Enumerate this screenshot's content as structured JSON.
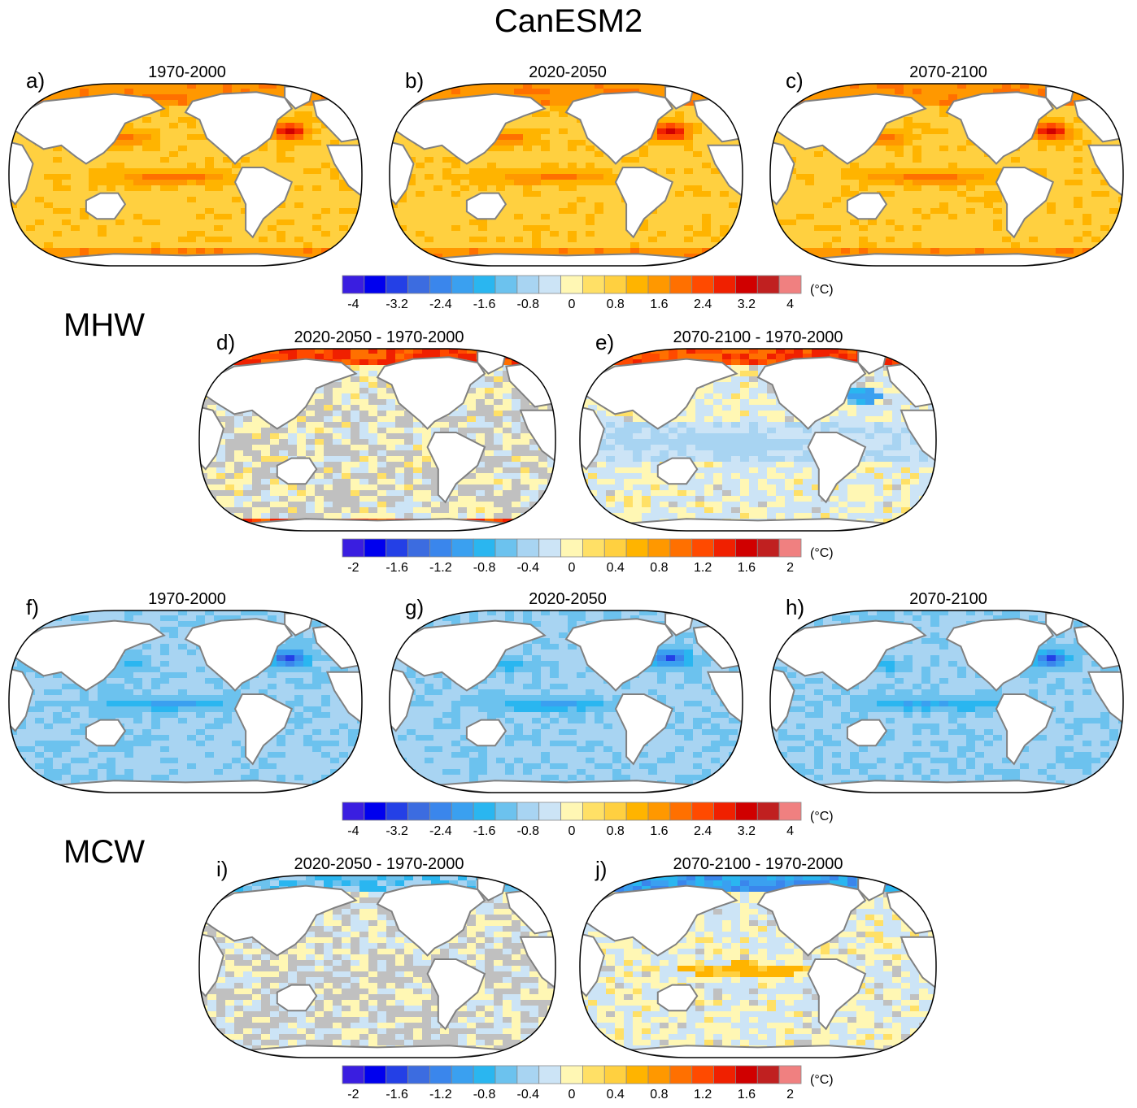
{
  "title": "CanESM2",
  "sections": [
    {
      "label": "MHW",
      "key": "mhw"
    },
    {
      "label": "MCW",
      "key": "mcw"
    }
  ],
  "panels": [
    {
      "letter": "a)",
      "title": "1970-2000",
      "kind": "warm"
    },
    {
      "letter": "b)",
      "title": "2020-2050",
      "kind": "warm"
    },
    {
      "letter": "c)",
      "title": "2070-2100",
      "kind": "warm"
    },
    {
      "letter": "d)",
      "title": "2020-2050 - 1970-2000",
      "kind": "diff-warm-small"
    },
    {
      "letter": "e)",
      "title": "2070-2100 - 1970-2000",
      "kind": "diff-warm-large"
    },
    {
      "letter": "f)",
      "title": "1970-2000",
      "kind": "cold"
    },
    {
      "letter": "g)",
      "title": "2020-2050",
      "kind": "cold"
    },
    {
      "letter": "h)",
      "title": "2070-2100",
      "kind": "cold"
    },
    {
      "letter": "i)",
      "title": "2020-2050 - 1970-2000",
      "kind": "diff-cold-small"
    },
    {
      "letter": "j)",
      "title": "2070-2100 - 1970-2000",
      "kind": "diff-cold-large"
    }
  ],
  "colorbars": [
    {
      "ticks": [
        "-4",
        "-3.2",
        "-2.4",
        "-1.6",
        "-0.8",
        "0",
        "0.8",
        "1.6",
        "2.4",
        "3.2",
        "4"
      ],
      "unit": "(°C)"
    },
    {
      "ticks": [
        "-2",
        "-1.6",
        "-1.2",
        "-0.8",
        "-0.4",
        "0",
        "0.4",
        "0.8",
        "1.2",
        "1.6",
        "2"
      ],
      "unit": "(°C)"
    },
    {
      "ticks": [
        "-4",
        "-3.2",
        "-2.4",
        "-1.6",
        "-0.8",
        "0",
        "0.8",
        "1.6",
        "2.4",
        "3.2",
        "4"
      ],
      "unit": "(°C)"
    },
    {
      "ticks": [
        "-2",
        "-1.6",
        "-1.2",
        "-0.8",
        "-0.4",
        "0",
        "0.4",
        "0.8",
        "1.2",
        "1.6",
        "2"
      ],
      "unit": "(°C)"
    }
  ],
  "palette": [
    "#3a1ee0",
    "#0000ee",
    "#2440e6",
    "#3c6ce0",
    "#3a86ec",
    "#3aa0f0",
    "#2ab6f0",
    "#6cc2ee",
    "#a8d4f2",
    "#cce4f6",
    "#fff7b4",
    "#ffe066",
    "#ffd040",
    "#ffb400",
    "#ff9800",
    "#ff7000",
    "#ff4a00",
    "#f02000",
    "#d00000",
    "#c02020",
    "#f08080"
  ],
  "colors": {
    "land": "#ffffff",
    "coast": "#808080",
    "frame": "#000000",
    "insignificant": "#c0c0c0"
  }
}
